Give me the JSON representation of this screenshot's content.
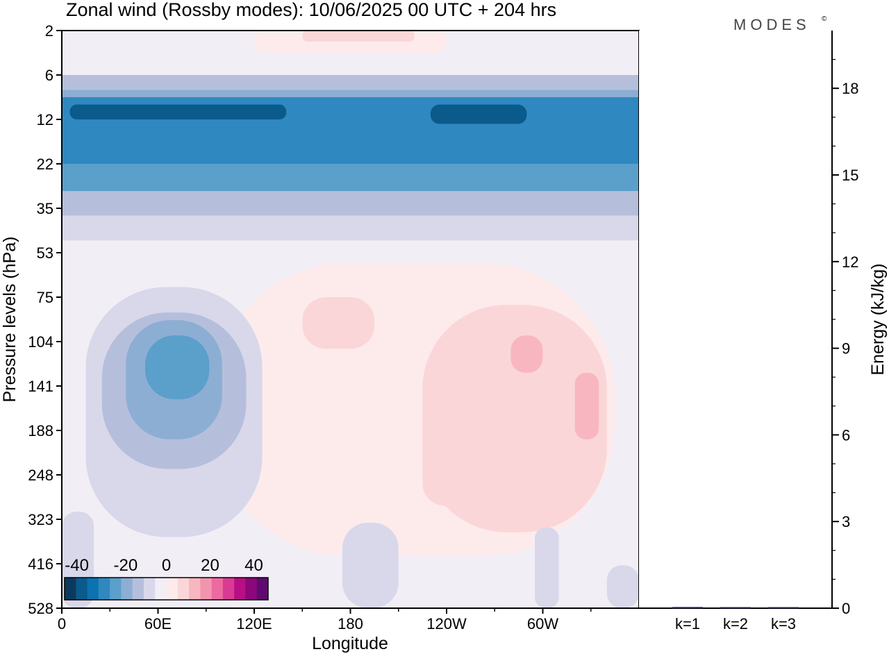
{
  "chart_data": [
    {
      "type": "heatmap",
      "title": "Zonal wind (Rossby modes):  10/06/2025  00 UTC  + 204 hrs",
      "xlabel": "Longitude",
      "ylabel": "Pressure levels (hPa)",
      "x_ticks": [
        "0",
        "60E",
        "120E",
        "180",
        "120W",
        "60W"
      ],
      "y_ticks": [
        "2",
        "6",
        "12",
        "22",
        "35",
        "53",
        "75",
        "104",
        "141",
        "188",
        "248",
        "323",
        "416",
        "528"
      ],
      "colorbar": {
        "ticks": [
          "-40",
          "-20",
          "0",
          "20",
          "40"
        ],
        "colors": [
          "#0b3a5e",
          "#0a5a8c",
          "#0c72b0",
          "#2f88bf",
          "#5b9fcb",
          "#8caed3",
          "#b5bfdc",
          "#d8d8ea",
          "#f2eef6",
          "#fdebec",
          "#fbd6d8",
          "#f8b7c0",
          "#f294ae",
          "#ec6aa0",
          "#d93a93",
          "#b80f84",
          "#8c077a",
          "#5e0a6e"
        ]
      },
      "regions": [
        {
          "level": -2,
          "lon": [
            0,
            360
          ],
          "p_top": 6,
          "p_bot": 8
        },
        {
          "level": -3,
          "lon": [
            0,
            360
          ],
          "p_top": 8,
          "p_bot": 9
        },
        {
          "level": -5,
          "lon": [
            0,
            360
          ],
          "p_top": 9,
          "p_bot": 22
        },
        {
          "level": -7,
          "lon": [
            5,
            140
          ],
          "p_top": 10,
          "p_bot": 12
        },
        {
          "level": -7,
          "lon": [
            230,
            290
          ],
          "p_top": 10,
          "p_bot": 13
        },
        {
          "level": -4,
          "lon": [
            0,
            360
          ],
          "p_top": 22,
          "p_bot": 30
        },
        {
          "level": -2,
          "lon": [
            0,
            360
          ],
          "p_top": 30,
          "p_bot": 38
        },
        {
          "level": -1,
          "lon": [
            0,
            360
          ],
          "p_top": 38,
          "p_bot": 48
        },
        {
          "level": 1,
          "lon": [
            120,
            240
          ],
          "p_top": 2,
          "p_bot": 4
        },
        {
          "level": 2,
          "lon": [
            150,
            220
          ],
          "p_top": 2,
          "p_bot": 3
        },
        {
          "level": 1,
          "lon": [
            95,
            345
          ],
          "p_top": 58,
          "p_bot": 400
        },
        {
          "level": 2,
          "lon": [
            150,
            195
          ],
          "p_top": 75,
          "p_bot": 110
        },
        {
          "level": 2,
          "lon": [
            225,
            340
          ],
          "p_top": 80,
          "p_bot": 350
        },
        {
          "level": 3,
          "lon": [
            280,
            300
          ],
          "p_top": 100,
          "p_bot": 130
        },
        {
          "level": 3,
          "lon": [
            320,
            335
          ],
          "p_top": 130,
          "p_bot": 200
        },
        {
          "level": 2,
          "lon": [
            225,
            255
          ],
          "p_top": 150,
          "p_bot": 300
        },
        {
          "level": -1,
          "lon": [
            15,
            125
          ],
          "p_top": 70,
          "p_bot": 360
        },
        {
          "level": -2,
          "lon": [
            25,
            115
          ],
          "p_top": 85,
          "p_bot": 240
        },
        {
          "level": -3,
          "lon": [
            40,
            100
          ],
          "p_top": 90,
          "p_bot": 200
        },
        {
          "level": -4,
          "lon": [
            52,
            92
          ],
          "p_top": 100,
          "p_bot": 155
        },
        {
          "level": -1,
          "lon": [
            175,
            210
          ],
          "p_top": 330,
          "p_bot": 528
        },
        {
          "level": -1,
          "lon": [
            295,
            310
          ],
          "p_top": 340,
          "p_bot": 528
        },
        {
          "level": -1,
          "lon": [
            0,
            20
          ],
          "p_top": 310,
          "p_bot": 528
        },
        {
          "level": -1,
          "lon": [
            340,
            360
          ],
          "p_top": 420,
          "p_bot": 528
        }
      ]
    },
    {
      "type": "bar",
      "ylabel": "Energy (kJ/kg)",
      "ylim": [
        0,
        20
      ],
      "y_ticks": [
        "3",
        "6",
        "9",
        "12",
        "15",
        "18"
      ],
      "y_zero": "0",
      "categories": [
        "k=1",
        "k=2",
        "k=3"
      ],
      "values": [
        0.04,
        0.02,
        0.01
      ],
      "bar_color": "#1a237e"
    }
  ],
  "logo": {
    "text": "MODES",
    "mark": "©"
  }
}
